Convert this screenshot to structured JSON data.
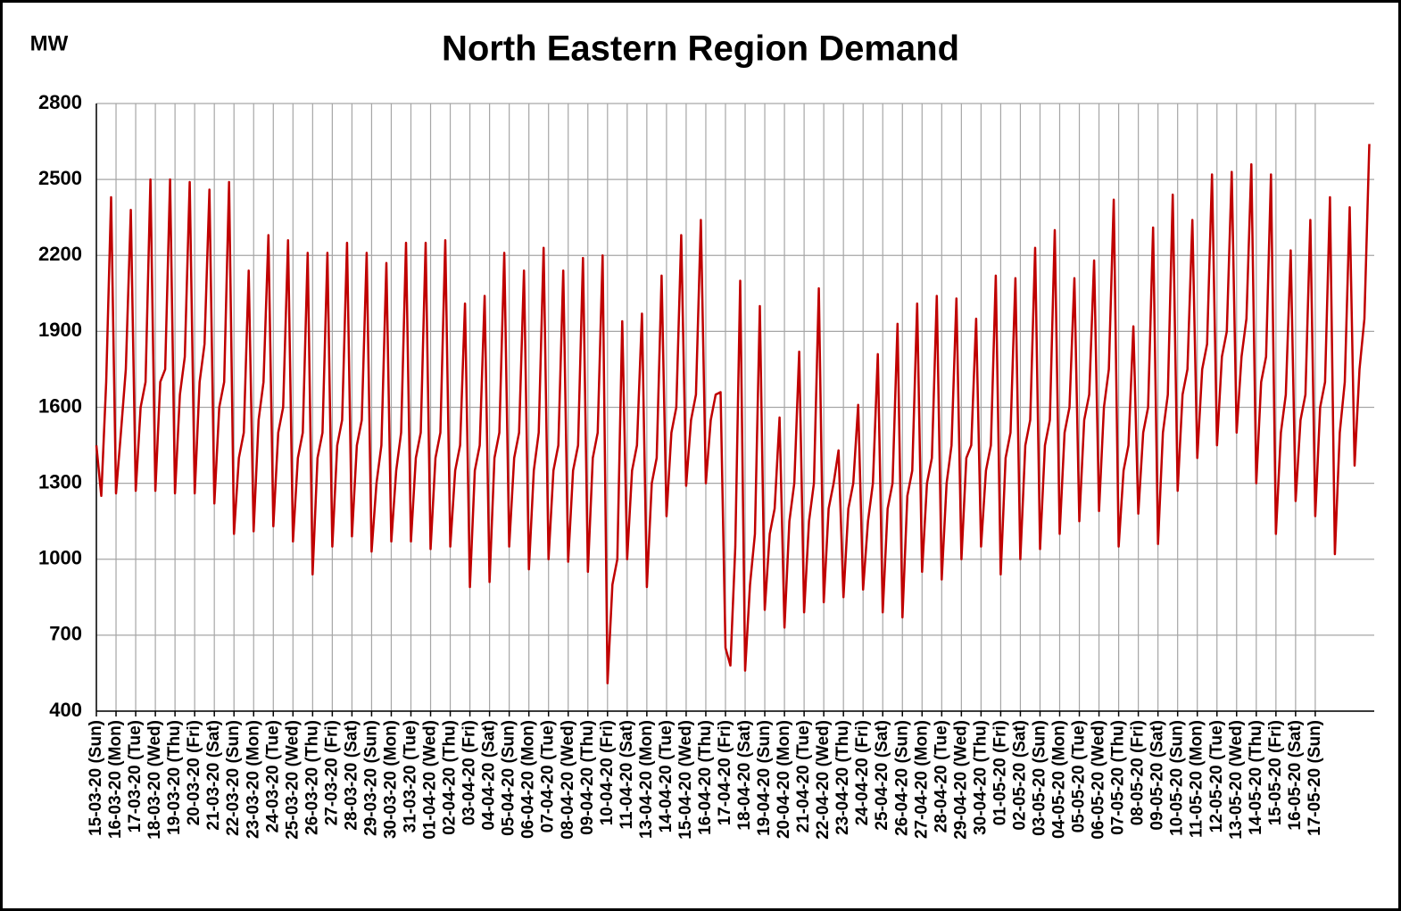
{
  "chart_data": {
    "type": "line",
    "title": "North Eastern Region Demand",
    "y_label": "MW",
    "ylim": [
      400,
      2800
    ],
    "yticks": [
      400,
      700,
      1000,
      1300,
      1600,
      1900,
      2200,
      2500,
      2800
    ],
    "xlim": [
      0,
      65
    ],
    "xticks": [
      {
        "value": 0,
        "label": "15-03-20 (Sun)"
      },
      {
        "value": 1,
        "label": "16-03-20 (Mon)"
      },
      {
        "value": 2,
        "label": "17-03-20 (Tue)"
      },
      {
        "value": 3,
        "label": "18-03-20 (Wed)"
      },
      {
        "value": 4,
        "label": "19-03-20 (Thu)"
      },
      {
        "value": 5,
        "label": "20-03-20 (Fri)"
      },
      {
        "value": 6,
        "label": "21-03-20 (Sat)"
      },
      {
        "value": 7,
        "label": "22-03-20 (Sun)"
      },
      {
        "value": 8,
        "label": "23-03-20 (Mon)"
      },
      {
        "value": 9,
        "label": "24-03-20 (Tue)"
      },
      {
        "value": 10,
        "label": "25-03-20 (Wed)"
      },
      {
        "value": 11,
        "label": "26-03-20 (Thu)"
      },
      {
        "value": 12,
        "label": "27-03-20 (Fri)"
      },
      {
        "value": 13,
        "label": "28-03-20 (Sat)"
      },
      {
        "value": 14,
        "label": "29-03-20 (Sun)"
      },
      {
        "value": 15,
        "label": "30-03-20 (Mon)"
      },
      {
        "value": 16,
        "label": "31-03-20 (Tue)"
      },
      {
        "value": 17,
        "label": "01-04-20 (Wed)"
      },
      {
        "value": 18,
        "label": "02-04-20 (Thu)"
      },
      {
        "value": 19,
        "label": "03-04-20 (Fri)"
      },
      {
        "value": 20,
        "label": "04-04-20 (Sat)"
      },
      {
        "value": 21,
        "label": "05-04-20 (Sun)"
      },
      {
        "value": 22,
        "label": "06-04-20 (Mon)"
      },
      {
        "value": 23,
        "label": "07-04-20 (Tue)"
      },
      {
        "value": 24,
        "label": "08-04-20 (Wed)"
      },
      {
        "value": 25,
        "label": "09-04-20 (Thu)"
      },
      {
        "value": 26,
        "label": "10-04-20 (Fri)"
      },
      {
        "value": 27,
        "label": "11-04-20 (Sat)"
      },
      {
        "value": 28,
        "label": "13-04-20 (Mon)"
      },
      {
        "value": 29,
        "label": "14-04-20 (Tue)"
      },
      {
        "value": 30,
        "label": "15-04-20 (Wed)"
      },
      {
        "value": 31,
        "label": "16-04-20 (Thu)"
      },
      {
        "value": 32,
        "label": "17-04-20 (Fri)"
      },
      {
        "value": 33,
        "label": "18-04-20 (Sat)"
      },
      {
        "value": 34,
        "label": "19-04-20 (Sun)"
      },
      {
        "value": 35,
        "label": "20-04-20 (Mon)"
      },
      {
        "value": 36,
        "label": "21-04-20 (Tue)"
      },
      {
        "value": 37,
        "label": "22-04-20 (Wed)"
      },
      {
        "value": 38,
        "label": "23-04-20 (Thu)"
      },
      {
        "value": 39,
        "label": "24-04-20 (Fri)"
      },
      {
        "value": 40,
        "label": "25-04-20 (Sat)"
      },
      {
        "value": 41,
        "label": "26-04-20 (Sun)"
      },
      {
        "value": 42,
        "label": "27-04-20 (Mon)"
      },
      {
        "value": 43,
        "label": "28-04-20 (Tue)"
      },
      {
        "value": 44,
        "label": "29-04-20 (Wed)"
      },
      {
        "value": 45,
        "label": "30-04-20 (Thu)"
      },
      {
        "value": 46,
        "label": "01-05-20 (Fri)"
      },
      {
        "value": 47,
        "label": "02-05-20 (Sat)"
      },
      {
        "value": 48,
        "label": "03-05-20 (Sun)"
      },
      {
        "value": 49,
        "label": "04-05-20 (Mon)"
      },
      {
        "value": 50,
        "label": "05-05-20 (Tue)"
      },
      {
        "value": 51,
        "label": "06-05-20 (Wed)"
      },
      {
        "value": 52,
        "label": "07-05-20 (Thu)"
      },
      {
        "value": 53,
        "label": "08-05-20 (Fri)"
      },
      {
        "value": 54,
        "label": "09-05-20 (Sat)"
      },
      {
        "value": 55,
        "label": "10-05-20 (Sun)"
      },
      {
        "value": 56,
        "label": "11-05-20 (Mon)"
      },
      {
        "value": 57,
        "label": "12-05-20 (Tue)"
      },
      {
        "value": 58,
        "label": "13-05-20 (Wed)"
      },
      {
        "value": 59,
        "label": "14-05-20 (Thu)"
      },
      {
        "value": 60,
        "label": "15-05-20 (Fri)"
      },
      {
        "value": 61,
        "label": "16-05-20 (Sat)"
      },
      {
        "value": 62,
        "label": "17-05-20 (Sun)"
      }
    ],
    "grid": true,
    "x": [
      0,
      0.25,
      0.5,
      0.75,
      1,
      1.25,
      1.5,
      1.75,
      2,
      2.25,
      2.5,
      2.75,
      3,
      3.25,
      3.5,
      3.75,
      4,
      4.25,
      4.5,
      4.75,
      5,
      5.25,
      5.5,
      5.75,
      6,
      6.25,
      6.5,
      6.75,
      7,
      7.25,
      7.5,
      7.75,
      8,
      8.25,
      8.5,
      8.75,
      9,
      9.25,
      9.5,
      9.75,
      10,
      10.25,
      10.5,
      10.75,
      11,
      11.25,
      11.5,
      11.75,
      12,
      12.25,
      12.5,
      12.75,
      13,
      13.25,
      13.5,
      13.75,
      14,
      14.25,
      14.5,
      14.75,
      15,
      15.25,
      15.5,
      15.75,
      16,
      16.25,
      16.5,
      16.75,
      17,
      17.25,
      17.5,
      17.75,
      18,
      18.25,
      18.5,
      18.75,
      19,
      19.25,
      19.5,
      19.75,
      20,
      20.25,
      20.5,
      20.75,
      21,
      21.25,
      21.5,
      21.75,
      22,
      22.25,
      22.5,
      22.75,
      23,
      23.25,
      23.5,
      23.75,
      24,
      24.25,
      24.5,
      24.75,
      25,
      25.25,
      25.5,
      25.75,
      26,
      26.25,
      26.5,
      26.75,
      27,
      27.25,
      27.5,
      27.75,
      28,
      28.25,
      28.5,
      28.75,
      29,
      29.25,
      29.5,
      29.75,
      30,
      30.25,
      30.5,
      30.75,
      31,
      31.25,
      31.5,
      31.75,
      32,
      32.25,
      32.5,
      32.75,
      33,
      33.25,
      33.5,
      33.75,
      34,
      34.25,
      34.5,
      34.75,
      35,
      35.25,
      35.5,
      35.75,
      36,
      36.25,
      36.5,
      36.75,
      37,
      37.25,
      37.5,
      37.75,
      38,
      38.25,
      38.5,
      38.75,
      39,
      39.25,
      39.5,
      39.75,
      40,
      40.25,
      40.5,
      40.75,
      41,
      41.25,
      41.5,
      41.75,
      42,
      42.25,
      42.5,
      42.75,
      43,
      43.25,
      43.5,
      43.75,
      44,
      44.25,
      44.5,
      44.75,
      45,
      45.25,
      45.5,
      45.75,
      46,
      46.25,
      46.5,
      46.75,
      47,
      47.25,
      47.5,
      47.75,
      48,
      48.25,
      48.5,
      48.75,
      49,
      49.25,
      49.5,
      49.75,
      50,
      50.25,
      50.5,
      50.75,
      51,
      51.25,
      51.5,
      51.75,
      52,
      52.25,
      52.5,
      52.75,
      53,
      53.25,
      53.5,
      53.75,
      54,
      54.25,
      54.5,
      54.75,
      55,
      55.25,
      55.5,
      55.75,
      56,
      56.25,
      56.5,
      56.75,
      57,
      57.25,
      57.5,
      57.75,
      58,
      58.25,
      58.5,
      58.75,
      59,
      59.25,
      59.5,
      59.75,
      60,
      60.25,
      60.5,
      60.75,
      61,
      61.25,
      61.5,
      61.75,
      62,
      62.25,
      62.5,
      62.75,
      63,
      63.25,
      63.5,
      63.75,
      64,
      64.25,
      64.5,
      64.75
    ],
    "series": [
      {
        "color": "#c00000",
        "values": [
          1450,
          1250,
          1700,
          2430,
          1260,
          1500,
          1750,
          2380,
          1270,
          1600,
          1700,
          2500,
          1270,
          1700,
          1750,
          2500,
          1260,
          1650,
          1800,
          2490,
          1260,
          1700,
          1850,
          2460,
          1220,
          1600,
          1700,
          2490,
          1100,
          1400,
          1500,
          2140,
          1110,
          1550,
          1700,
          2280,
          1130,
          1500,
          1600,
          2260,
          1070,
          1400,
          1500,
          2210,
          940,
          1400,
          1500,
          2210,
          1050,
          1450,
          1550,
          2250,
          1090,
          1450,
          1550,
          2210,
          1030,
          1300,
          1450,
          2170,
          1070,
          1350,
          1500,
          2250,
          1070,
          1400,
          1500,
          2250,
          1040,
          1400,
          1500,
          2260,
          1050,
          1350,
          1450,
          2010,
          890,
          1350,
          1450,
          2040,
          910,
          1400,
          1500,
          2210,
          1050,
          1400,
          1500,
          2140,
          960,
          1350,
          1500,
          2230,
          1000,
          1350,
          1450,
          2140,
          990,
          1350,
          1450,
          2190,
          950,
          1400,
          1500,
          2200,
          510,
          900,
          1000,
          1940,
          1000,
          1350,
          1450,
          1970,
          890,
          1300,
          1400,
          2120,
          1170,
          1500,
          1600,
          2280,
          1290,
          1550,
          1650,
          2340,
          1300,
          1550,
          1650,
          1660,
          650,
          580,
          1050,
          2100,
          560,
          900,
          1100,
          2000,
          800,
          1100,
          1200,
          1560,
          730,
          1150,
          1300,
          1820,
          790,
          1150,
          1300,
          2070,
          830,
          1200,
          1300,
          1430,
          850,
          1200,
          1300,
          1610,
          880,
          1150,
          1300,
          1810,
          790,
          1200,
          1300,
          1930,
          770,
          1250,
          1350,
          2010,
          950,
          1300,
          1400,
          2040,
          920,
          1300,
          1450,
          2030,
          1000,
          1400,
          1450,
          1950,
          1050,
          1350,
          1450,
          2120,
          940,
          1400,
          1500,
          2110,
          1000,
          1450,
          1550,
          2230,
          1040,
          1450,
          1550,
          2300,
          1100,
          1500,
          1600,
          2110,
          1150,
          1550,
          1650,
          2180,
          1190,
          1600,
          1750,
          2420,
          1050,
          1350,
          1450,
          1920,
          1180,
          1500,
          1600,
          2310,
          1060,
          1500,
          1650,
          2440,
          1270,
          1650,
          1750,
          2340,
          1400,
          1750,
          1850,
          2520,
          1450,
          1800,
          1900,
          2530,
          1500,
          1800,
          1950,
          2560,
          1300,
          1700,
          1800,
          2520,
          1100,
          1500,
          1650,
          2220,
          1230,
          1550,
          1650,
          2340,
          1170,
          1600,
          1700,
          2430,
          1020,
          1500,
          1700,
          2390,
          1370,
          1750,
          1950,
          2640
        ]
      }
    ]
  }
}
